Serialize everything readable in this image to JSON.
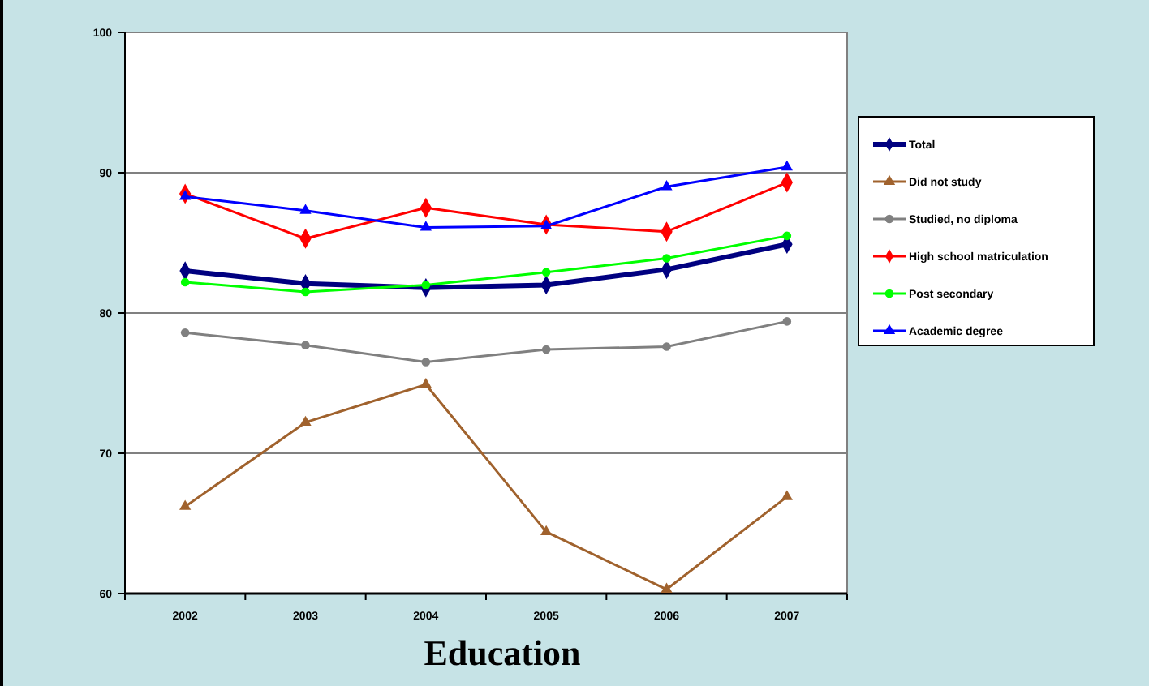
{
  "chart_data": {
    "type": "line",
    "title": "Education",
    "categories": [
      "2002",
      "2003",
      "2004",
      "2005",
      "2006",
      "2007"
    ],
    "series": [
      {
        "name": "Total",
        "color": "#000080",
        "marker": "diamond",
        "values": [
          83.0,
          82.1,
          81.8,
          82.0,
          83.1,
          84.9
        ]
      },
      {
        "name": "Did not study",
        "color": "#a0622d",
        "marker": "triangle",
        "values": [
          66.2,
          72.2,
          74.9,
          64.4,
          60.3,
          66.9
        ]
      },
      {
        "name": "Studied, no diploma",
        "color": "#808080",
        "marker": "circle",
        "values": [
          78.6,
          77.7,
          76.5,
          77.4,
          77.6,
          79.4
        ]
      },
      {
        "name": "High school matriculation",
        "color": "#ff0000",
        "marker": "diamond",
        "values": [
          88.5,
          85.3,
          87.5,
          86.3,
          85.8,
          89.3
        ]
      },
      {
        "name": "Post secondary",
        "color": "#00ff00",
        "marker": "circle",
        "values": [
          82.2,
          81.5,
          82.0,
          82.9,
          83.9,
          85.5
        ]
      },
      {
        "name": "Academic degree",
        "color": "#0000ff",
        "marker": "triangle",
        "values": [
          88.3,
          87.3,
          86.1,
          86.2,
          89.0,
          90.4
        ]
      }
    ],
    "ylim": [
      60,
      100
    ],
    "yticks": [
      60,
      70,
      80,
      90,
      100
    ],
    "grid": "y",
    "legend": "right",
    "line_style": "solid"
  }
}
